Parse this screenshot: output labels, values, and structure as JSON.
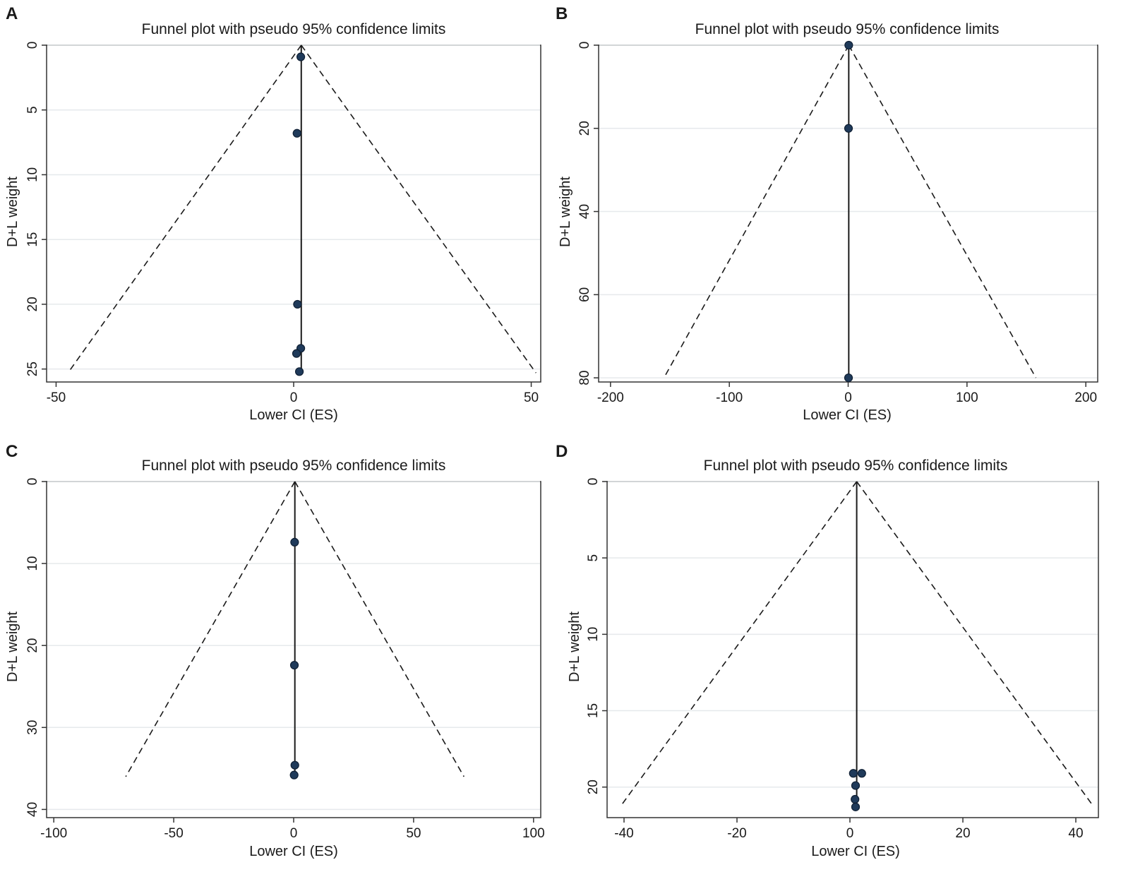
{
  "figure": {
    "description_colors": {
      "marker_fill": "#1f3a5a",
      "marker_stroke": "#0f1f33",
      "line": "#1a1a1a",
      "grid": "#e6e9ec",
      "frame": "#333333"
    }
  },
  "chart_data": [
    {
      "panel": "A",
      "type": "scatter",
      "title": "Funnel plot with pseudo 95% confidence limits",
      "xlabel": "Lower CI (ES)",
      "ylabel": "D+L weight",
      "xlim": [
        -52,
        52
      ],
      "ylim": [
        0,
        26
      ],
      "y_reversed": true,
      "xticks": [
        -50,
        0,
        50
      ],
      "yticks": [
        0,
        5,
        10,
        15,
        20,
        25
      ],
      "pooled_estimate": 1.6,
      "funnel": {
        "apex": [
          1.6,
          0
        ],
        "bottom_y": 25.3,
        "left_x": -47.5,
        "right_x": 51
      },
      "points": [
        {
          "x": 1.5,
          "y": 0.9
        },
        {
          "x": 0.7,
          "y": 6.8
        },
        {
          "x": 0.8,
          "y": 20
        },
        {
          "x": 1.5,
          "y": 23.4
        },
        {
          "x": 0.6,
          "y": 23.8
        },
        {
          "x": 1.2,
          "y": 25.2
        }
      ]
    },
    {
      "panel": "B",
      "type": "scatter",
      "title": "Funnel plot with pseudo 95% confidence limits",
      "xlabel": "Lower CI (ES)",
      "ylabel": "D+L weight",
      "xlim": [
        -210,
        210
      ],
      "ylim": [
        0,
        81
      ],
      "y_reversed": true,
      "xticks": [
        -200,
        -100,
        0,
        100,
        200
      ],
      "yticks": [
        0,
        20,
        40,
        60,
        80
      ],
      "pooled_estimate": 0.5,
      "funnel": {
        "apex": [
          0.5,
          0
        ],
        "bottom_y": 80,
        "left_x": -155,
        "right_x": 158
      },
      "points": [
        {
          "x": 0.5,
          "y": 0
        },
        {
          "x": 0.3,
          "y": 20
        },
        {
          "x": 0.3,
          "y": 80
        }
      ]
    },
    {
      "panel": "C",
      "type": "scatter",
      "title": "Funnel plot with pseudo 95% confidence limits",
      "xlabel": "Lower CI (ES)",
      "ylabel": "D+L weight",
      "xlim": [
        -103,
        103
      ],
      "ylim": [
        0,
        41
      ],
      "y_reversed": true,
      "xticks": [
        -100,
        -50,
        0,
        50,
        100
      ],
      "yticks": [
        0,
        10,
        20,
        30,
        40
      ],
      "pooled_estimate": 0.5,
      "funnel": {
        "apex": [
          0.5,
          0
        ],
        "bottom_y": 36,
        "left_x": -70,
        "right_x": 71
      },
      "points": [
        {
          "x": 0.4,
          "y": 7.4
        },
        {
          "x": 0.3,
          "y": 22.4
        },
        {
          "x": 0.5,
          "y": 34.6
        },
        {
          "x": 0.2,
          "y": 35.8
        }
      ]
    },
    {
      "panel": "D",
      "type": "scatter",
      "title": "Funnel plot with pseudo 95% confidence limits",
      "xlabel": "Lower CI (ES)",
      "ylabel": "D+L weight",
      "xlim": [
        -43,
        44
      ],
      "ylim": [
        0,
        22
      ],
      "y_reversed": true,
      "xticks": [
        -40,
        -20,
        0,
        20,
        40
      ],
      "yticks": [
        0,
        5,
        10,
        15,
        20
      ],
      "pooled_estimate": 1.2,
      "funnel": {
        "apex": [
          1.2,
          0
        ],
        "bottom_y": 21.2,
        "left_x": -40.5,
        "right_x": 43
      },
      "points": [
        {
          "x": 0.6,
          "y": 19.1
        },
        {
          "x": 2.1,
          "y": 19.1
        },
        {
          "x": 1.0,
          "y": 19.9
        },
        {
          "x": 0.9,
          "y": 20.8
        },
        {
          "x": 1.0,
          "y": 21.3
        }
      ]
    }
  ]
}
